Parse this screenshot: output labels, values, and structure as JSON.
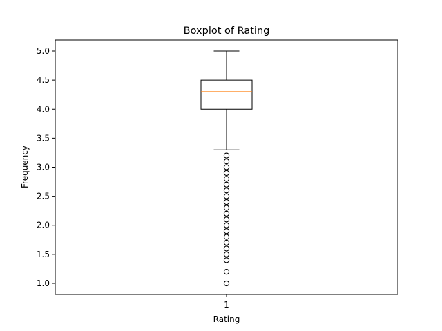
{
  "chart_data": {
    "type": "boxplot",
    "title": "Boxplot of Rating",
    "xlabel": "Rating",
    "ylabel": "Frequency",
    "categories": [
      "1"
    ],
    "ylim": [
      0.81,
      5.19
    ],
    "yticks": [
      "1.0",
      "1.5",
      "2.0",
      "2.5",
      "3.0",
      "3.5",
      "4.0",
      "4.5",
      "5.0"
    ],
    "grid": false,
    "boxes": [
      {
        "name": "1",
        "whisker_low": 3.3,
        "q1": 4.0,
        "median": 4.3,
        "q3": 4.5,
        "whisker_high": 5.0,
        "outliers": [
          3.2,
          3.1,
          3.0,
          2.9,
          2.8,
          2.7,
          2.6,
          2.5,
          2.4,
          2.3,
          2.2,
          2.1,
          2.0,
          1.9,
          1.8,
          1.7,
          1.6,
          1.5,
          1.4,
          1.2,
          1.0
        ]
      }
    ],
    "colors": {
      "box": "#000000",
      "median": "#ff7f0e",
      "outlier_edge": "#000000"
    }
  }
}
